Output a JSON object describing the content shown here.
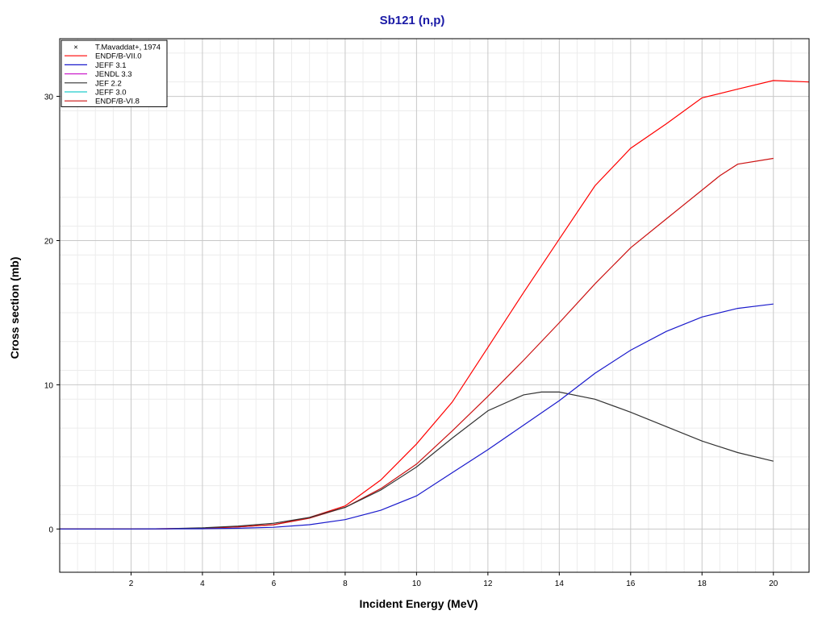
{
  "chart_data": {
    "type": "line",
    "title": "Sb121 (n,p)",
    "xlabel": "Incident Energy (MeV)",
    "ylabel": "Cross section (mb)",
    "xlim": [
      0,
      21
    ],
    "ylim": [
      -3,
      34
    ],
    "x_ticks": [
      2,
      4,
      6,
      8,
      10,
      12,
      14,
      16,
      18,
      20
    ],
    "y_ticks": [
      0,
      10,
      20,
      30
    ],
    "grid": true,
    "legend_position": "top-left",
    "legend": [
      {
        "name": "T.Mavaddat+, 1974",
        "marker": "x",
        "color": "#000000"
      },
      {
        "name": "ENDF/B-VII.0",
        "color": "#ff0000"
      },
      {
        "name": "JEFF 3.1",
        "color": "#1a1acc"
      },
      {
        "name": "JENDL 3.3",
        "color": "#cc22cc"
      },
      {
        "name": "JEF 2.2",
        "color": "#333333"
      },
      {
        "name": "JEFF 3.0",
        "color": "#22cccc"
      },
      {
        "name": "ENDF/B-VI.8",
        "color": "#cc1111"
      }
    ],
    "series": [
      {
        "name": "ENDF/B-VII.0",
        "color": "#ff0000",
        "x": [
          0,
          2,
          3,
          4,
          5,
          6,
          7,
          8,
          9,
          10,
          11,
          12,
          13,
          14,
          15,
          16,
          17,
          18,
          19,
          20,
          21
        ],
        "y": [
          0,
          0,
          0.02,
          0.05,
          0.15,
          0.3,
          0.8,
          1.6,
          3.4,
          5.9,
          8.8,
          12.6,
          16.4,
          20.1,
          23.8,
          26.4,
          28.1,
          29.9,
          30.5,
          31.1,
          31.0
        ]
      },
      {
        "name": "ENDF/B-VI.8",
        "color": "#cc1111",
        "x": [
          0,
          2,
          3,
          4,
          5,
          6,
          7,
          8,
          9,
          10,
          11,
          12,
          13,
          14,
          15,
          16,
          17,
          18,
          18.5,
          19,
          20
        ],
        "y": [
          0,
          0,
          0.02,
          0.05,
          0.15,
          0.3,
          0.75,
          1.5,
          2.8,
          4.5,
          6.8,
          9.2,
          11.7,
          14.3,
          17.0,
          19.5,
          21.5,
          23.5,
          24.5,
          25.3,
          25.7
        ]
      },
      {
        "name": "JEF 2.2",
        "color": "#333333",
        "x": [
          0,
          2,
          3,
          4,
          5,
          6,
          7,
          8,
          9,
          10,
          11,
          12,
          13,
          13.5,
          14,
          15,
          16,
          17,
          18,
          19,
          20
        ],
        "y": [
          0,
          0,
          0.02,
          0.08,
          0.2,
          0.4,
          0.8,
          1.5,
          2.7,
          4.3,
          6.3,
          8.2,
          9.3,
          9.5,
          9.5,
          9.0,
          8.1,
          7.1,
          6.1,
          5.3,
          4.7
        ]
      },
      {
        "name": "JEFF 3.1",
        "color": "#1a1acc",
        "x": [
          0,
          2,
          3,
          4,
          5,
          6,
          7,
          8,
          9,
          10,
          11,
          12,
          13,
          14,
          15,
          16,
          17,
          18,
          19,
          20
        ],
        "y": [
          0,
          0,
          0.01,
          0.02,
          0.05,
          0.12,
          0.3,
          0.65,
          1.3,
          2.3,
          3.9,
          5.5,
          7.2,
          8.9,
          10.8,
          12.4,
          13.7,
          14.7,
          15.3,
          15.6
        ]
      }
    ]
  }
}
